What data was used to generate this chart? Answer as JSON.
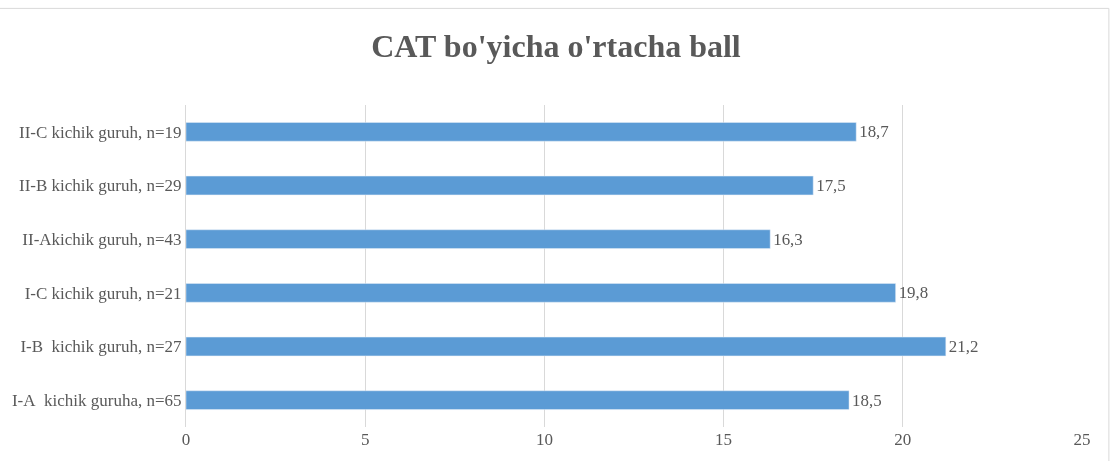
{
  "chart_data": {
    "type": "bar",
    "orientation": "horizontal",
    "title": "CAT bo'yicha o'rtacha ball",
    "categories": [
      "II-C kichik guruh, n=19",
      "II-B kichik guruh, n=29",
      "II-Akichik guruh, n=43",
      "I-C kichik guruh, n=21",
      "I-B  kichik guruh, n=27",
      "I-A  kichik guruha, n=65"
    ],
    "values": [
      18.7,
      17.5,
      16.3,
      19.8,
      21.2,
      18.5
    ],
    "value_labels": [
      "18,7",
      "17,5",
      "16,3",
      "19,8",
      "21,2",
      "18,5"
    ],
    "color": "#5b9bd5",
    "xlim": [
      0,
      25
    ],
    "xticks": [
      0,
      5,
      10,
      15,
      20,
      25
    ],
    "grid": "x",
    "legend": false
  }
}
